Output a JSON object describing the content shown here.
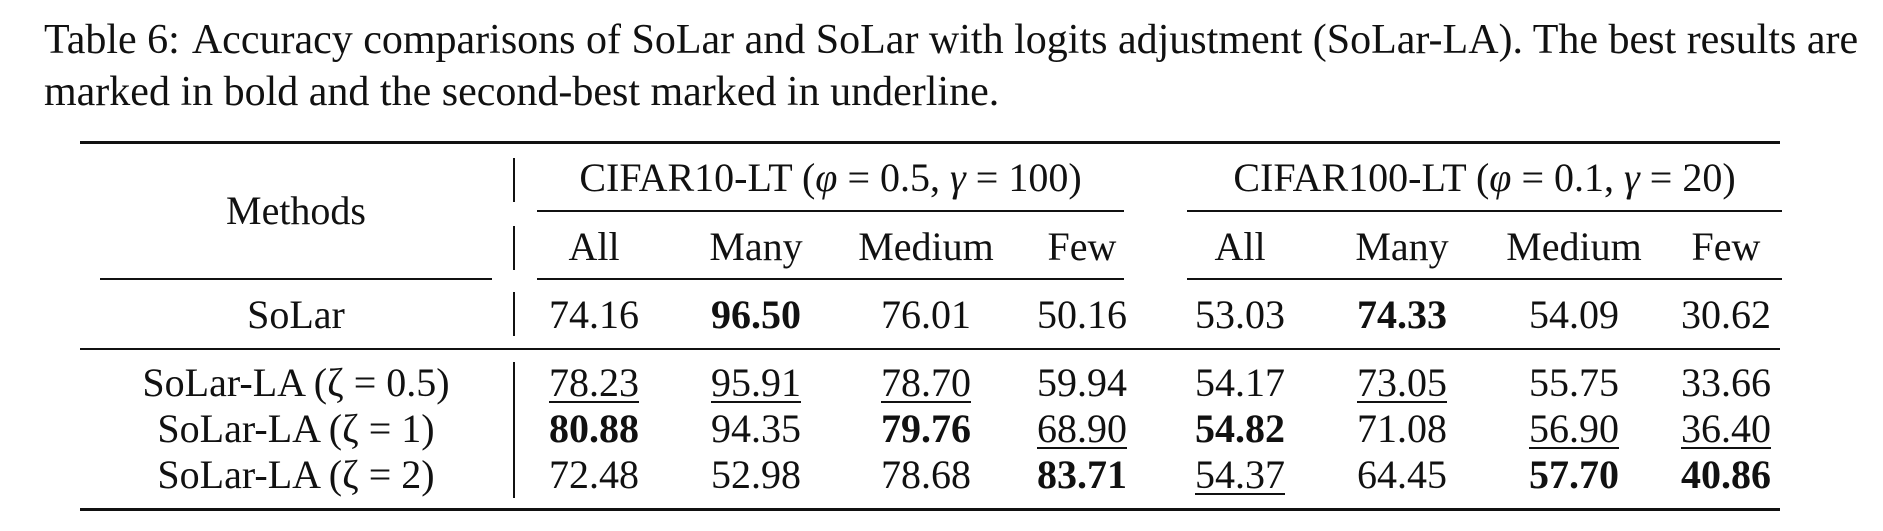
{
  "caption": {
    "label": "Table 6:",
    "text": "Accuracy comparisons of SoLar and SoLar with logits adjustment (SoLar-LA). The best results are marked in bold and the second-best marked in underline."
  },
  "table": {
    "methods_header": "Methods",
    "groups": [
      {
        "dataset": "CIFAR10-LT",
        "phi_label": "φ",
        "phi": "0.5",
        "gamma_label": "γ",
        "gamma": "100"
      },
      {
        "dataset": "CIFAR100-LT",
        "phi_label": "φ",
        "phi": "0.1",
        "gamma_label": "γ",
        "gamma": "20"
      }
    ],
    "columns": [
      "All",
      "Many",
      "Medium",
      "Few",
      "All",
      "Many",
      "Medium",
      "Few"
    ],
    "rows": [
      {
        "method": "SoLar",
        "values": [
          "74.16",
          "96.50",
          "76.01",
          "50.16",
          "53.03",
          "74.33",
          "54.09",
          "30.62"
        ],
        "bold": [
          1,
          5
        ],
        "underline": []
      },
      {
        "method": "SoLar-LA (ζ = 0.5)",
        "values": [
          "78.23",
          "95.91",
          "78.70",
          "59.94",
          "54.17",
          "73.05",
          "55.75",
          "33.66"
        ],
        "bold": [],
        "underline": [
          0,
          1,
          2,
          5
        ]
      },
      {
        "method": "SoLar-LA (ζ = 1)",
        "values": [
          "80.88",
          "94.35",
          "79.76",
          "68.90",
          "54.82",
          "71.08",
          "56.90",
          "36.40"
        ],
        "bold": [
          0,
          2,
          4
        ],
        "underline": [
          3,
          6,
          7
        ]
      },
      {
        "method": "SoLar-LA (ζ = 2)",
        "values": [
          "72.48",
          "52.98",
          "78.68",
          "83.71",
          "54.37",
          "64.45",
          "57.70",
          "40.86"
        ],
        "bold": [
          3,
          6,
          7
        ],
        "underline": [
          4
        ]
      }
    ]
  }
}
